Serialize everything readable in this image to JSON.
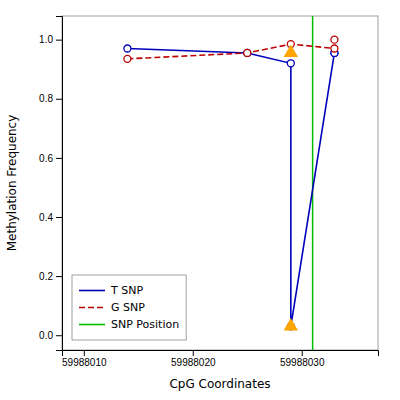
{
  "chart_data": {
    "type": "line",
    "xlabel": "CpG Coordinates",
    "ylabel": "Methylation Frequency",
    "xlim": [
      59988008,
      59988037
    ],
    "ylim": [
      -0.05,
      1.08
    ],
    "xticks": [
      59988010,
      59988020,
      59988030
    ],
    "yticks": [
      {
        "value": 0.0,
        "label": "0.0"
      },
      0.2,
      0.4,
      0.6,
      0.8,
      {
        "value": 1.0,
        "label": "1.0"
      }
    ],
    "grid": false,
    "legend": "lower left",
    "series": [
      {
        "name": "T SNP",
        "type": "line",
        "color": "#0000BB",
        "line_style": "solid",
        "x": [
          59988014,
          59988025,
          59988029,
          59988029,
          59988033
        ],
        "values": [
          0.97,
          0.955,
          0.92,
          0.03,
          0.955
        ]
      },
      {
        "name": "G SNP",
        "type": "line",
        "color": "#BB0000",
        "line_style": "dashed",
        "x": [
          59988014,
          59988025,
          59988029,
          59988033
        ],
        "values": [
          0.935,
          0.955,
          0.985,
          0.97
        ]
      },
      {
        "name": "SNP Position",
        "type": "vline",
        "color": "#00BB00",
        "line_style": "solid",
        "x": 59988031
      },
      {
        "type": "scatter",
        "marker": "open-circle",
        "color": "#0000BB",
        "x": [
          59988014,
          59988025,
          59988029,
          59988029,
          59988033,
          59988033
        ],
        "values": [
          0.97,
          0.955,
          0.92,
          0.03,
          0.955,
          0.955
        ]
      },
      {
        "type": "scatter",
        "marker": "open-circle",
        "color": "#BB0000",
        "x": [
          59988014,
          59988025,
          59988029,
          59988033,
          59988033
        ],
        "values": [
          0.935,
          0.955,
          0.985,
          1.0,
          0.97
        ]
      },
      {
        "type": "scatter",
        "marker": "triangle",
        "color": "#FFA500",
        "x": [
          59988029,
          59988029
        ],
        "values": [
          0.955,
          0.03
        ]
      }
    ]
  }
}
